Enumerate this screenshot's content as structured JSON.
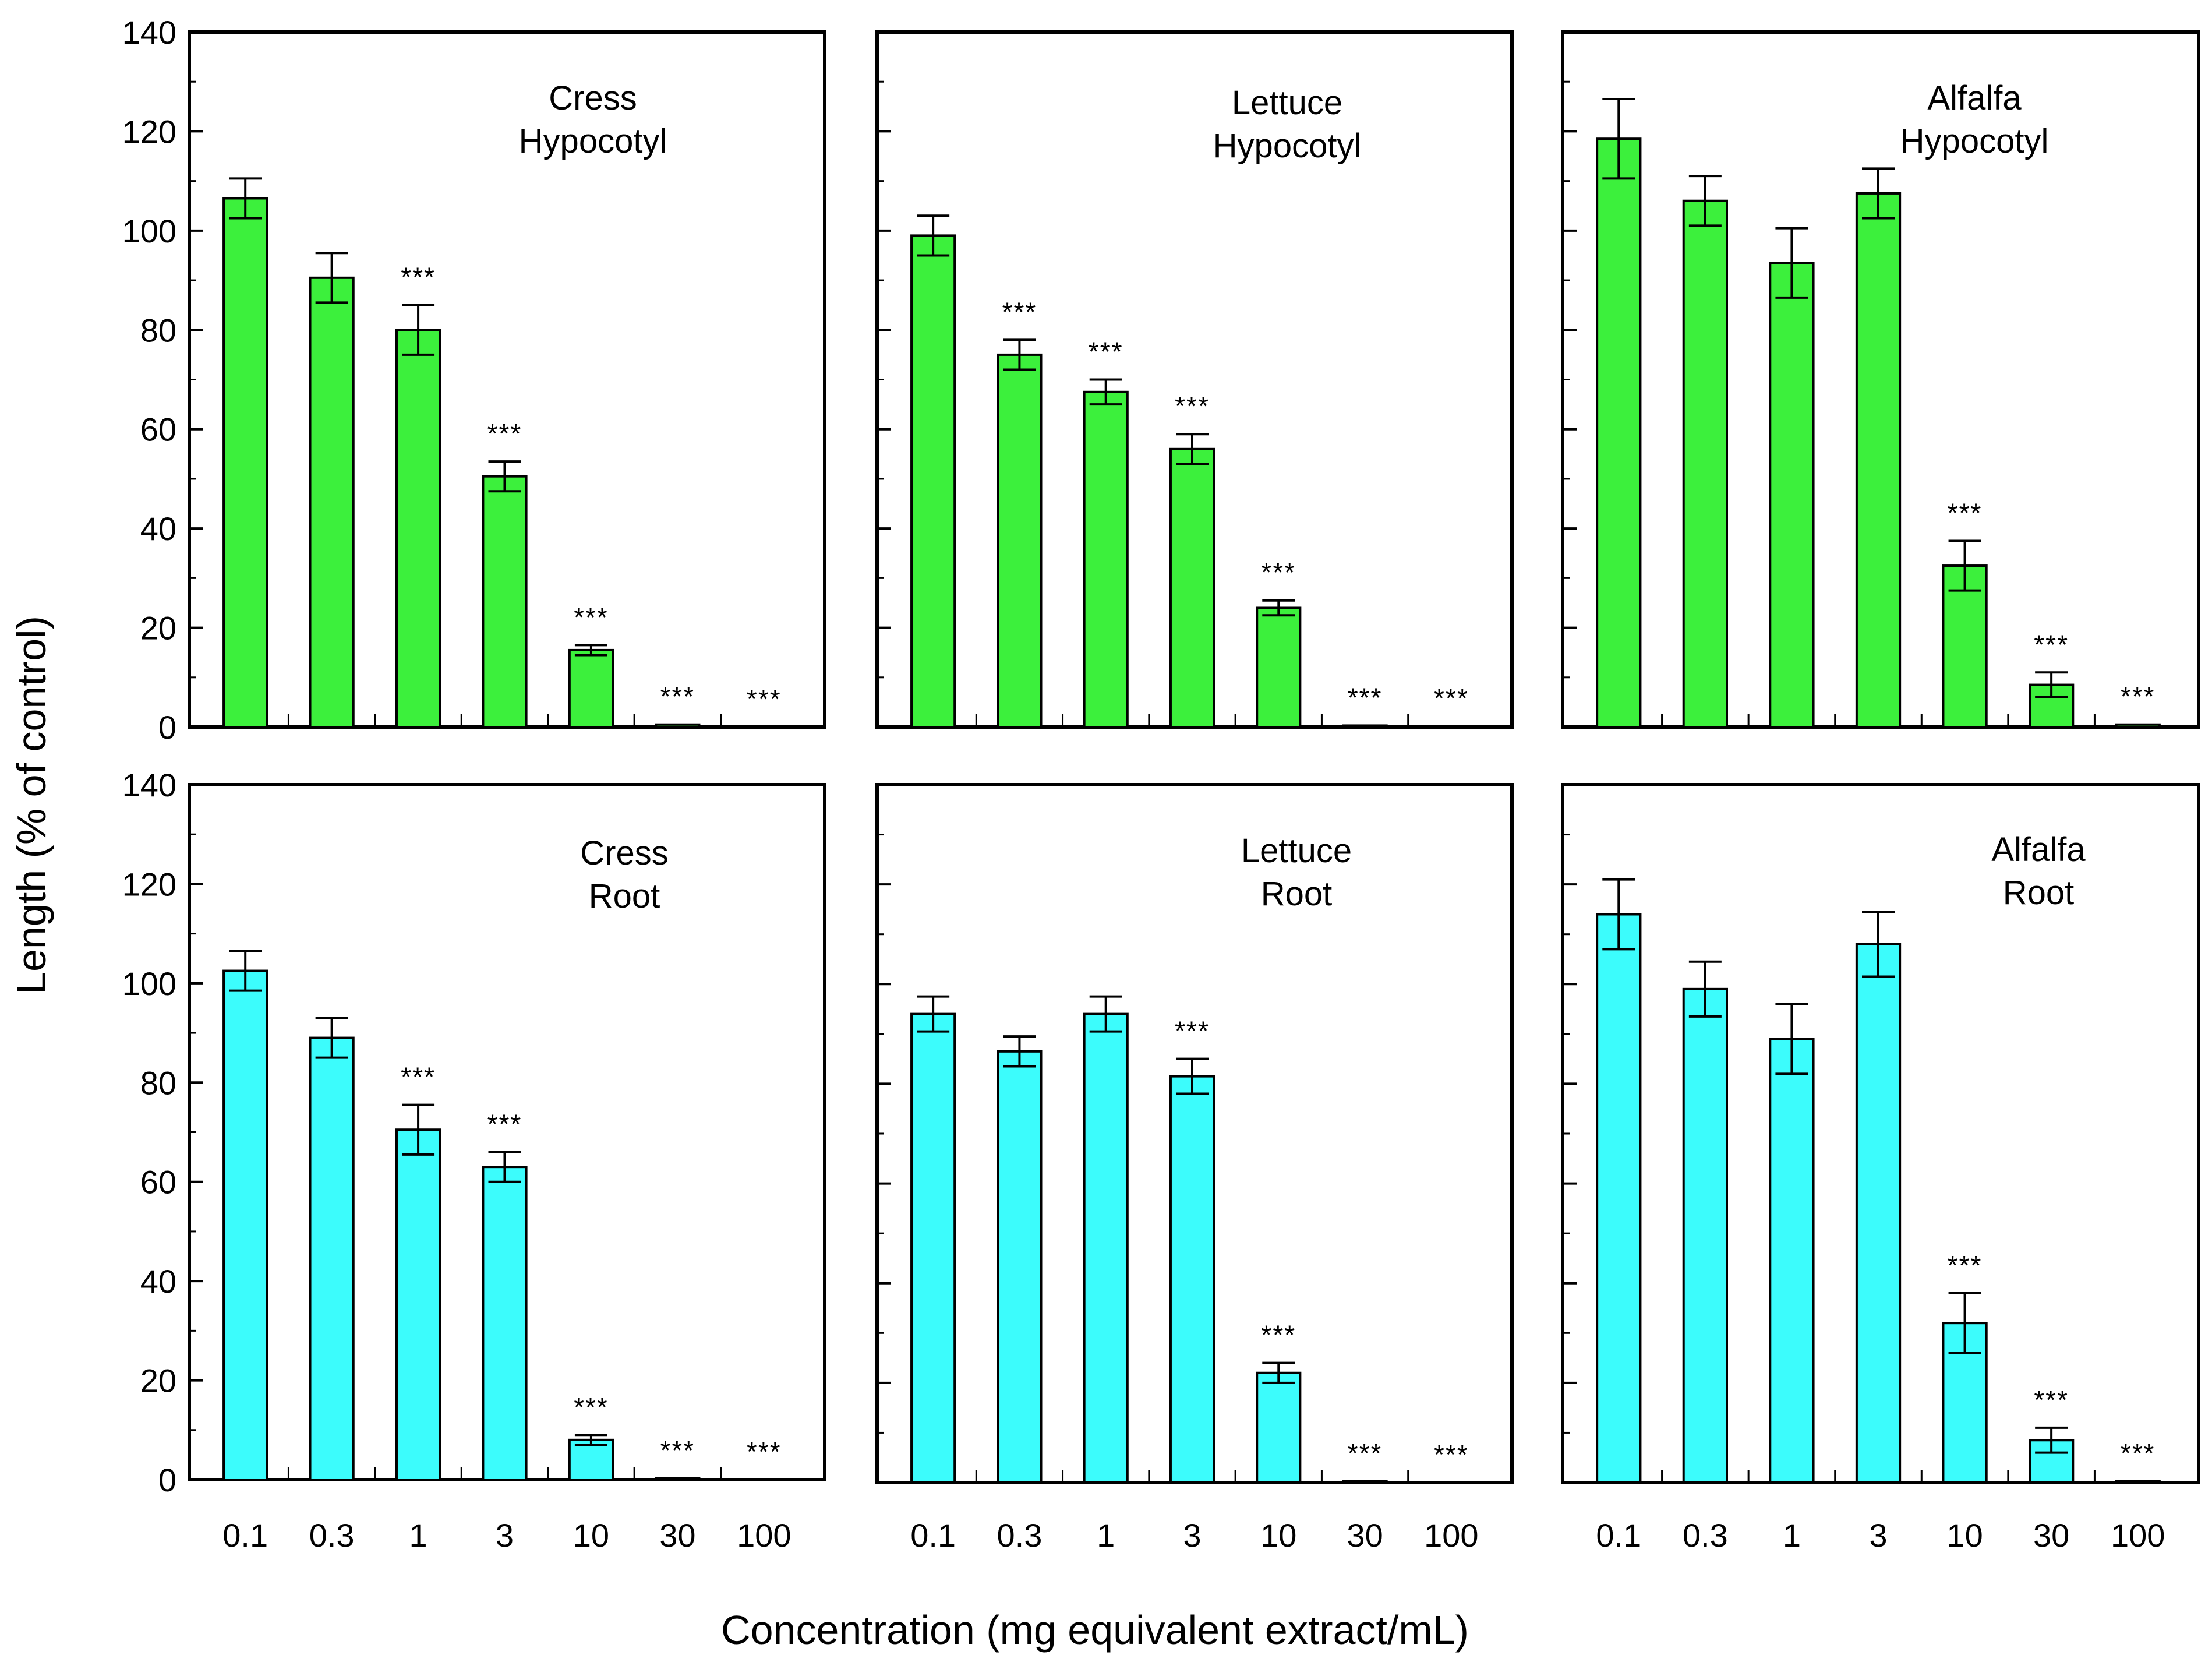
{
  "figure": {
    "ylabel": "Length  (% of control)",
    "xlabel": "Concentration (mg equivalent extract/mL)"
  },
  "colors": {
    "hypocotyl_bar": "#3cf03c",
    "root_bar": "#3cfcfc",
    "axis": "#000000"
  },
  "chart_data": [
    {
      "type": "bar",
      "label_lines": [
        "Cress",
        "Hypocotyl"
      ],
      "categories": [
        "0.1",
        "0.3",
        "1",
        "3",
        "10",
        "30",
        "100"
      ],
      "values": [
        106.5,
        90.5,
        80,
        50.5,
        15.5,
        0.5,
        0
      ],
      "errors": [
        4,
        5,
        5,
        3,
        1,
        0,
        0
      ],
      "significance": [
        "",
        "",
        "***",
        "***",
        "***",
        "***",
        "***"
      ],
      "ylim": [
        0,
        140
      ],
      "yticks": [
        0,
        20,
        40,
        60,
        80,
        100,
        120,
        140
      ],
      "show_ytick_labels": true,
      "show_xtick_labels": false
    },
    {
      "type": "bar",
      "label_lines": [
        "Lettuce",
        "Hypocotyl"
      ],
      "categories": [
        "0.1",
        "0.3",
        "1",
        "3",
        "10",
        "30",
        "100"
      ],
      "values": [
        99,
        75,
        67.5,
        56,
        24,
        0.3,
        0.2
      ],
      "errors": [
        4,
        3,
        2.5,
        3,
        1.5,
        0,
        0
      ],
      "significance": [
        "",
        "***",
        "***",
        "***",
        "***",
        "***",
        "***"
      ],
      "ylim": [
        0,
        140
      ],
      "yticks": [
        0,
        20,
        40,
        60,
        80,
        100,
        120,
        140
      ],
      "show_ytick_labels": false,
      "show_xtick_labels": false
    },
    {
      "type": "bar",
      "label_lines": [
        "Alfalfa",
        "Hypocotyl"
      ],
      "categories": [
        "0.1",
        "0.3",
        "1",
        "3",
        "10",
        "30",
        "100"
      ],
      "values": [
        118.5,
        106,
        93.5,
        107.5,
        32.5,
        8.5,
        0.5
      ],
      "errors": [
        8,
        5,
        7,
        5,
        5,
        2.5,
        0
      ],
      "significance": [
        "",
        "",
        "",
        "",
        "***",
        "***",
        "***"
      ],
      "ylim": [
        0,
        140
      ],
      "yticks": [
        0,
        20,
        40,
        60,
        80,
        100,
        120,
        140
      ],
      "show_ytick_labels": false,
      "show_xtick_labels": false
    },
    {
      "type": "bar",
      "label_lines": [
        "Cress",
        "Root"
      ],
      "categories": [
        "0.1",
        "0.3",
        "1",
        "3",
        "10",
        "30",
        "100"
      ],
      "values": [
        102.5,
        89,
        70.5,
        63,
        8,
        0.3,
        0
      ],
      "errors": [
        4,
        4,
        5,
        3,
        1,
        0,
        0
      ],
      "significance": [
        "",
        "",
        "***",
        "***",
        "***",
        "***",
        "***"
      ],
      "ylim": [
        0,
        140
      ],
      "yticks": [
        0,
        20,
        40,
        60,
        80,
        100,
        120,
        140
      ],
      "show_ytick_labels": true,
      "show_xtick_labels": true
    },
    {
      "type": "bar",
      "label_lines": [
        "Lettuce",
        "Root"
      ],
      "categories": [
        "0.1",
        "0.3",
        "1",
        "3",
        "10",
        "30",
        "100"
      ],
      "values": [
        94,
        86.5,
        94,
        81.5,
        22,
        0.3,
        0
      ],
      "errors": [
        3.5,
        3,
        3.5,
        3.5,
        2,
        0,
        0
      ],
      "significance": [
        "",
        "",
        "",
        "***",
        "***",
        "***",
        "***"
      ],
      "ylim": [
        0,
        140
      ],
      "yticks": [
        0,
        20,
        40,
        60,
        80,
        100,
        120,
        140
      ],
      "show_ytick_labels": false,
      "show_xtick_labels": true
    },
    {
      "type": "bar",
      "label_lines": [
        "Alfalfa",
        "Root"
      ],
      "categories": [
        "0.1",
        "0.3",
        "1",
        "3",
        "10",
        "30",
        "100"
      ],
      "values": [
        114,
        99,
        89,
        108,
        32,
        8.5,
        0.3
      ],
      "errors": [
        7,
        5.5,
        7,
        6.5,
        6,
        2.5,
        0
      ],
      "significance": [
        "",
        "",
        "",
        "",
        "***",
        "***",
        "***"
      ],
      "ylim": [
        0,
        140
      ],
      "yticks": [
        0,
        20,
        40,
        60,
        80,
        100,
        120,
        140
      ],
      "show_ytick_labels": false,
      "show_xtick_labels": true
    }
  ]
}
